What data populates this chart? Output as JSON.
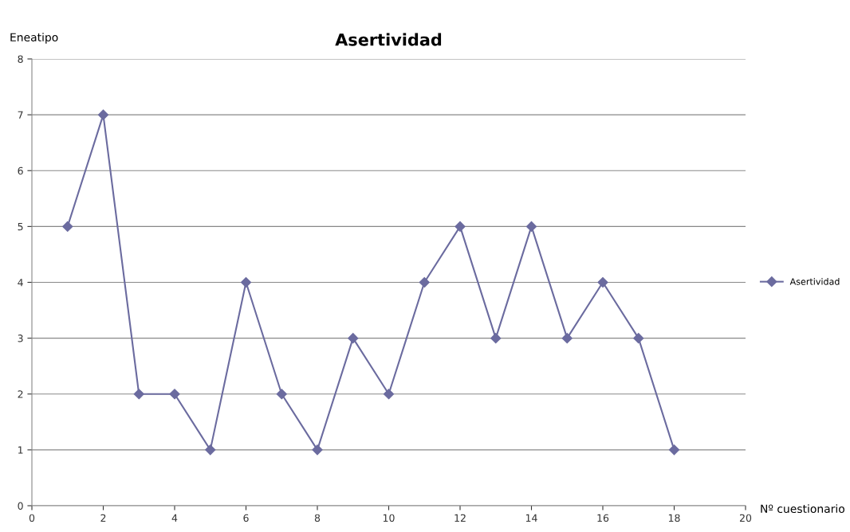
{
  "chart_data": {
    "type": "line",
    "title": "Asertividad",
    "xlabel": "Nº cuestionario",
    "ylabel": "Eneatipo",
    "x": [
      1,
      2,
      3,
      4,
      5,
      6,
      7,
      8,
      9,
      10,
      11,
      12,
      13,
      14,
      15,
      16,
      17,
      18
    ],
    "series": [
      {
        "name": "Asertividad",
        "color": "#6b6b9f",
        "values": [
          5,
          7,
          2,
          2,
          1,
          4,
          2,
          1,
          3,
          2,
          4,
          5,
          3,
          5,
          3,
          4,
          3,
          1
        ]
      }
    ],
    "xlim": [
      0,
      20
    ],
    "xticks": [
      0,
      2,
      4,
      6,
      8,
      10,
      12,
      14,
      16,
      18,
      20
    ],
    "ylim": [
      0,
      8
    ],
    "yticks": [
      0,
      1,
      2,
      3,
      4,
      5,
      6,
      7,
      8
    ],
    "grid": "y",
    "legend": "right",
    "marker": "diamond",
    "line_style": "solid"
  }
}
